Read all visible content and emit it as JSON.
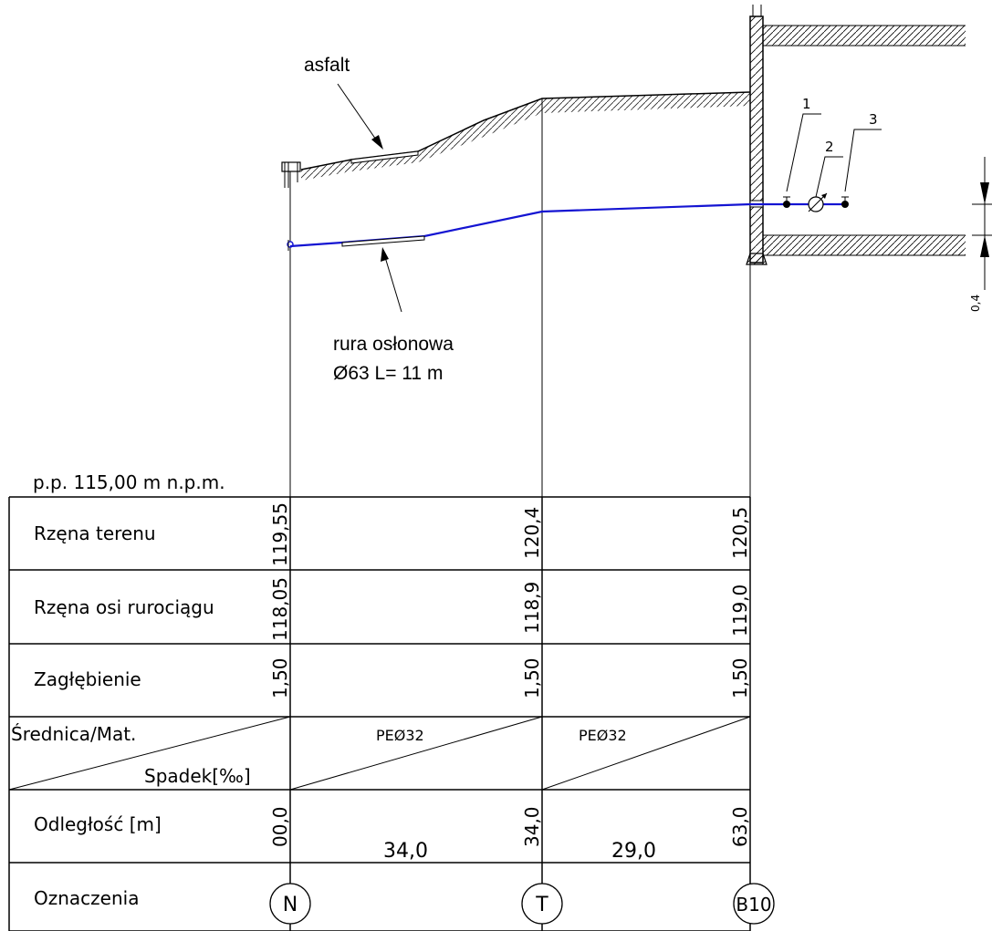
{
  "annotations": {
    "asfalt": "asfalt",
    "casing_line1": "rura osłonowa",
    "casing_line2": "Ø63 L= 11 m"
  },
  "detail_markers": [
    "1",
    "2",
    "3"
  ],
  "dimension": {
    "value": "0,4"
  },
  "reference_level": "p.p. 115,00 m n.p.m.",
  "table": {
    "row_headers": {
      "ground": "Rzęna terenu",
      "axis": "Rzęna osi rurociągu",
      "depth": "Zagłębienie",
      "diam_top": "Średnica/Mat.",
      "diam_bottom": "Spadek[‰]",
      "distance": "Odległość [m]",
      "marks": "Oznaczenia"
    },
    "stations": [
      {
        "ground": "119,55",
        "axis": "118,05",
        "depth": "1,50",
        "distance": "00,0",
        "mark": "N"
      },
      {
        "ground": "120,4",
        "axis": "118,9",
        "depth": "1,50",
        "distance": "34,0",
        "mark": "T"
      },
      {
        "ground": "120,5",
        "axis": "119,0",
        "depth": "1,50",
        "distance": "63,0",
        "mark": "B10"
      }
    ],
    "segments": [
      {
        "material": "PEØ32",
        "length": "34,0"
      },
      {
        "material": "PEØ32",
        "length": "29,0"
      }
    ]
  },
  "colors": {
    "pipe": "#1414d2",
    "lines": "#000000"
  }
}
